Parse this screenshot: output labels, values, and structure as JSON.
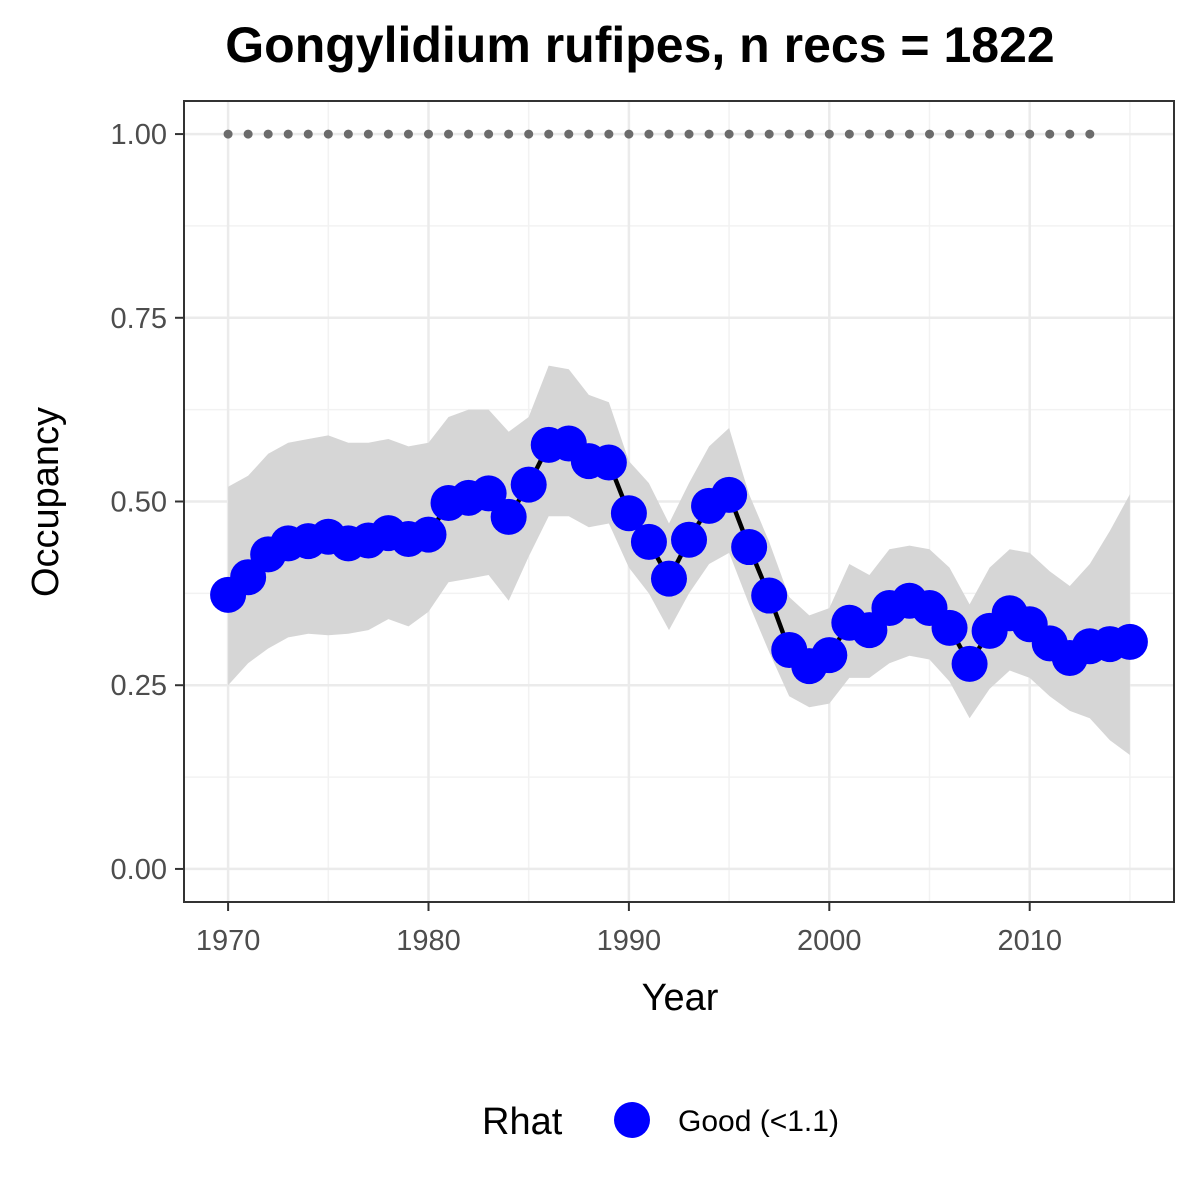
{
  "chart_data": {
    "type": "line",
    "title": "Gongylidium rufipes, n recs = 1822",
    "xlabel": "Year",
    "ylabel": "Occupancy",
    "xlim": [
      1967.8,
      2017.2
    ],
    "ylim": [
      -0.045,
      1.045
    ],
    "x_ticks": [
      1970,
      1980,
      1990,
      2000,
      2010
    ],
    "x_tick_labels": [
      "1970",
      "1980",
      "1990",
      "2000",
      "2010"
    ],
    "y_ticks": [
      0,
      0.25,
      0.5,
      0.75,
      1.0
    ],
    "y_tick_labels": [
      "0.00",
      "0.25",
      "0.50",
      "0.75",
      "1.00"
    ],
    "grid": true,
    "legend": {
      "position": "bottom",
      "title": "Rhat",
      "entries": [
        {
          "label": "Good (<1.1)",
          "color": "#0000ff"
        }
      ]
    },
    "colors": {
      "points": "#0000ff",
      "line": "#000000",
      "ribbon": "#d6d6d6",
      "reference_dots": "#6b6b6b"
    },
    "series": [
      {
        "x": [
          1970,
          1971,
          1972,
          1973,
          1974,
          1975,
          1976,
          1977,
          1978,
          1979,
          1980,
          1981,
          1982,
          1983,
          1984,
          1985,
          1986,
          1987,
          1988,
          1989,
          1990,
          1991,
          1992,
          1993,
          1994,
          1995,
          1996,
          1997,
          1998,
          1999,
          2000,
          2001,
          2002,
          2003,
          2004,
          2005,
          2006,
          2007,
          2008,
          2009,
          2010,
          2011,
          2012,
          2013,
          2014,
          2015
        ],
        "values": [
          0.373,
          0.397,
          0.428,
          0.443,
          0.446,
          0.452,
          0.443,
          0.447,
          0.457,
          0.449,
          0.455,
          0.498,
          0.505,
          0.511,
          0.479,
          0.523,
          0.577,
          0.579,
          0.555,
          0.553,
          0.484,
          0.445,
          0.395,
          0.448,
          0.494,
          0.509,
          0.438,
          0.372,
          0.298,
          0.276,
          0.291,
          0.335,
          0.325,
          0.355,
          0.365,
          0.355,
          0.328,
          0.279,
          0.324,
          0.348,
          0.333,
          0.307,
          0.287,
          0.303,
          0.306,
          0.309
        ],
        "lower": [
          0.25,
          0.28,
          0.3,
          0.315,
          0.32,
          0.318,
          0.32,
          0.325,
          0.34,
          0.33,
          0.35,
          0.39,
          0.395,
          0.4,
          0.365,
          0.425,
          0.48,
          0.48,
          0.465,
          0.47,
          0.41,
          0.375,
          0.325,
          0.375,
          0.415,
          0.43,
          0.36,
          0.295,
          0.235,
          0.22,
          0.225,
          0.26,
          0.26,
          0.28,
          0.29,
          0.285,
          0.255,
          0.205,
          0.245,
          0.27,
          0.26,
          0.235,
          0.215,
          0.205,
          0.175,
          0.155
        ],
        "upper": [
          0.52,
          0.535,
          0.565,
          0.58,
          0.585,
          0.59,
          0.58,
          0.58,
          0.585,
          0.575,
          0.58,
          0.615,
          0.625,
          0.625,
          0.595,
          0.615,
          0.685,
          0.68,
          0.645,
          0.635,
          0.555,
          0.525,
          0.47,
          0.525,
          0.575,
          0.6,
          0.51,
          0.445,
          0.37,
          0.345,
          0.355,
          0.415,
          0.4,
          0.435,
          0.44,
          0.435,
          0.41,
          0.36,
          0.41,
          0.435,
          0.43,
          0.405,
          0.385,
          0.415,
          0.46,
          0.51
        ]
      }
    ],
    "reference_dots": {
      "x": [
        1970,
        1971,
        1972,
        1973,
        1974,
        1975,
        1976,
        1977,
        1978,
        1979,
        1980,
        1981,
        1982,
        1983,
        1984,
        1985,
        1986,
        1987,
        1988,
        1989,
        1990,
        1991,
        1992,
        1993,
        1994,
        1995,
        1996,
        1997,
        1998,
        1999,
        2000,
        2001,
        2002,
        2003,
        2004,
        2005,
        2006,
        2007,
        2008,
        2009,
        2010,
        2011,
        2012,
        2013
      ],
      "y": 1.0
    }
  }
}
